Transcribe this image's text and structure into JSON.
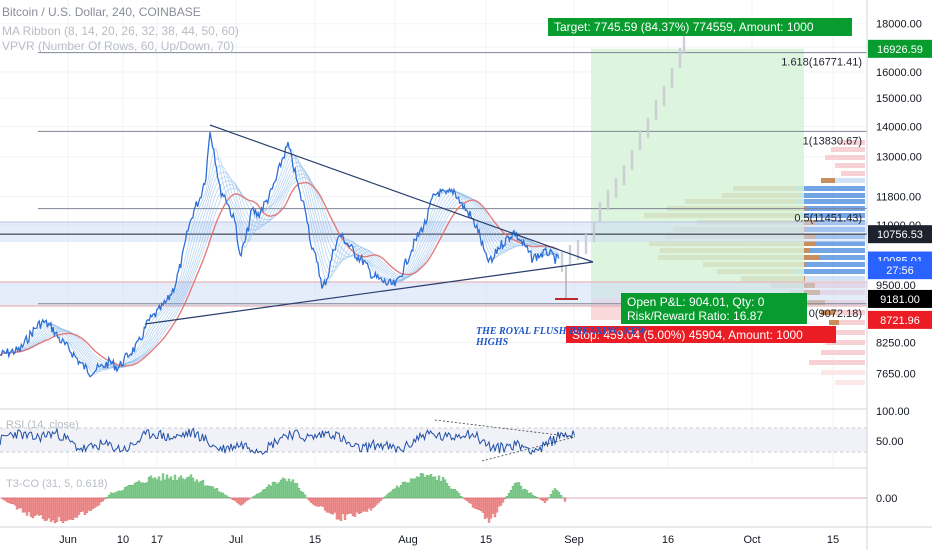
{
  "legend": {
    "title": "Bitcoin / U.S. Dollar, 240, COINBASE",
    "ma_ribbon": "MA Ribbon (8, 14, 20, 26, 32, 38, 44, 50, 60)",
    "vpvr": "VPVR (Number Of Rows, 60, Up/Down, 70)"
  },
  "colors": {
    "up": "#26a69a",
    "down": "#ef5350",
    "price_line": "#2e6fd6",
    "ribbon": "#7fb2e8",
    "target": "#089c2e",
    "stop": "#ec1c24",
    "trend": "#2a3e6e"
  },
  "chart_data": [
    {
      "type": "line",
      "name": "price-pane",
      "x_ticks": [
        "Jun",
        "10",
        "17",
        "Jul",
        "15",
        "Aug",
        "15",
        "Sep",
        "16",
        "Oct",
        "15"
      ],
      "y_axis": {
        "scale": "log",
        "ylim": [
          7000,
          18700
        ],
        "ticks": [
          "18000.00",
          "17000.00",
          "16000.00",
          "15000.00",
          "14000.00",
          "13000.00",
          "11800.00",
          "11000.00",
          "9500.00",
          "8250.00",
          "7650.00"
        ]
      },
      "price_labels": [
        {
          "text": "16926.59",
          "value": 16926.59,
          "color": "#089c2e"
        },
        {
          "text": "10756.53",
          "value": 10756.53,
          "color": "#1e222d"
        },
        {
          "text": "10085.01",
          "value": 10085.01,
          "color": "#2962ff"
        },
        {
          "text": "27:56",
          "value": 9850,
          "color": "#2962ff"
        },
        {
          "text": "9181.00",
          "value": 9181.0,
          "color": "#000000"
        },
        {
          "text": "8721.96",
          "value": 8721.96,
          "color": "#ec1c24"
        }
      ],
      "fib_levels": [
        {
          "label": "1.618(16771.41)",
          "value": 16771.41
        },
        {
          "label": "1(13830.67)",
          "value": 13830.67
        },
        {
          "label": "0.5(11451.43)",
          "value": 11451.43
        },
        {
          "label": "0(9072.18)",
          "value": 9072.18
        }
      ],
      "position": {
        "target_text": "Target: 7745.59 (84.37%) 774559, Amount: 1000",
        "pnl_text": "Open P&L: 904.01, Qty: 0",
        "rr_text": "Risk/Reward Ratio: 16.87",
        "stop_text": "Stop: 459.04 (5.00%) 45904, Amount: 1000",
        "entry": 9181.0,
        "target": 16926.59,
        "stop": 8721.96
      },
      "annotation": "THE ROYAL FLUSH BREAKING NEW HIGHS"
    },
    {
      "type": "line",
      "name": "rsi-pane",
      "label": "RSI (14, close)",
      "ticks": [
        "100.00",
        "50.00"
      ],
      "ylim": [
        0,
        100
      ],
      "bands": [
        30,
        70
      ]
    },
    {
      "type": "bar",
      "name": "t3-pane",
      "label": "T3-CO (31, 5, 0.618)",
      "ticks": [
        "0.00"
      ]
    }
  ]
}
